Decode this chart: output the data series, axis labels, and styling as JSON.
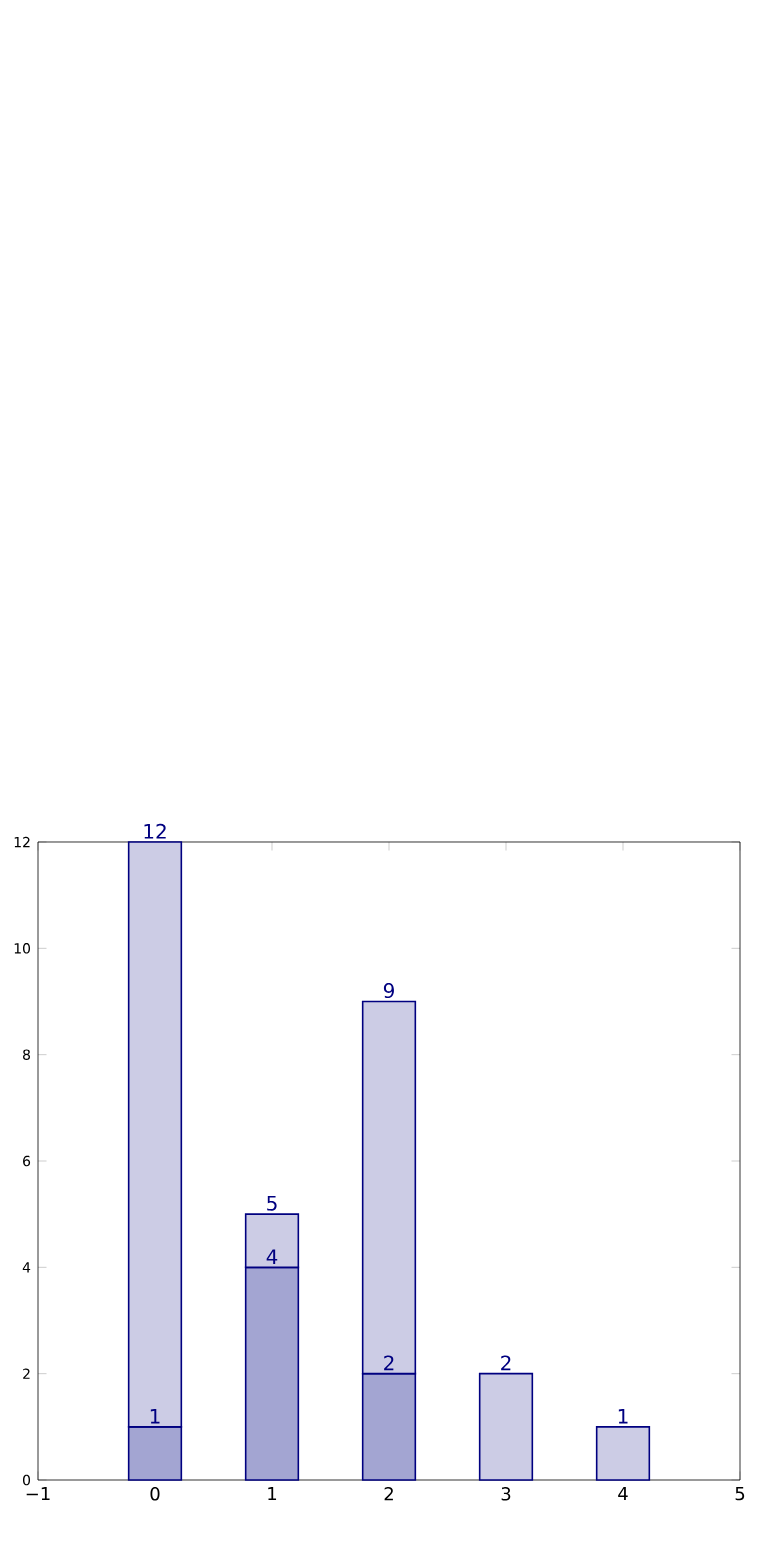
{
  "chart_data": {
    "type": "bar",
    "x": [
      0,
      1,
      2,
      3,
      4
    ],
    "stacked": true,
    "series": [
      {
        "color": "#a3a5d2",
        "values": [
          1,
          4,
          2,
          null,
          null
        ],
        "value_labels": [
          "1",
          "4",
          "2",
          null,
          null
        ]
      },
      {
        "color": "#ccccE5",
        "values": [
          11,
          1,
          7,
          2,
          1
        ]
      }
    ],
    "totals": [
      "12",
      "5",
      "9",
      "2",
      "1"
    ],
    "xlim": [
      -1,
      5
    ],
    "xticks": [
      {
        "value": -1,
        "label": "−1"
      },
      0,
      1,
      2,
      3,
      4,
      5
    ],
    "ylim": [
      0,
      12
    ],
    "yticks": [
      0,
      2,
      4,
      6,
      8,
      10,
      12
    ],
    "grid": false
  }
}
